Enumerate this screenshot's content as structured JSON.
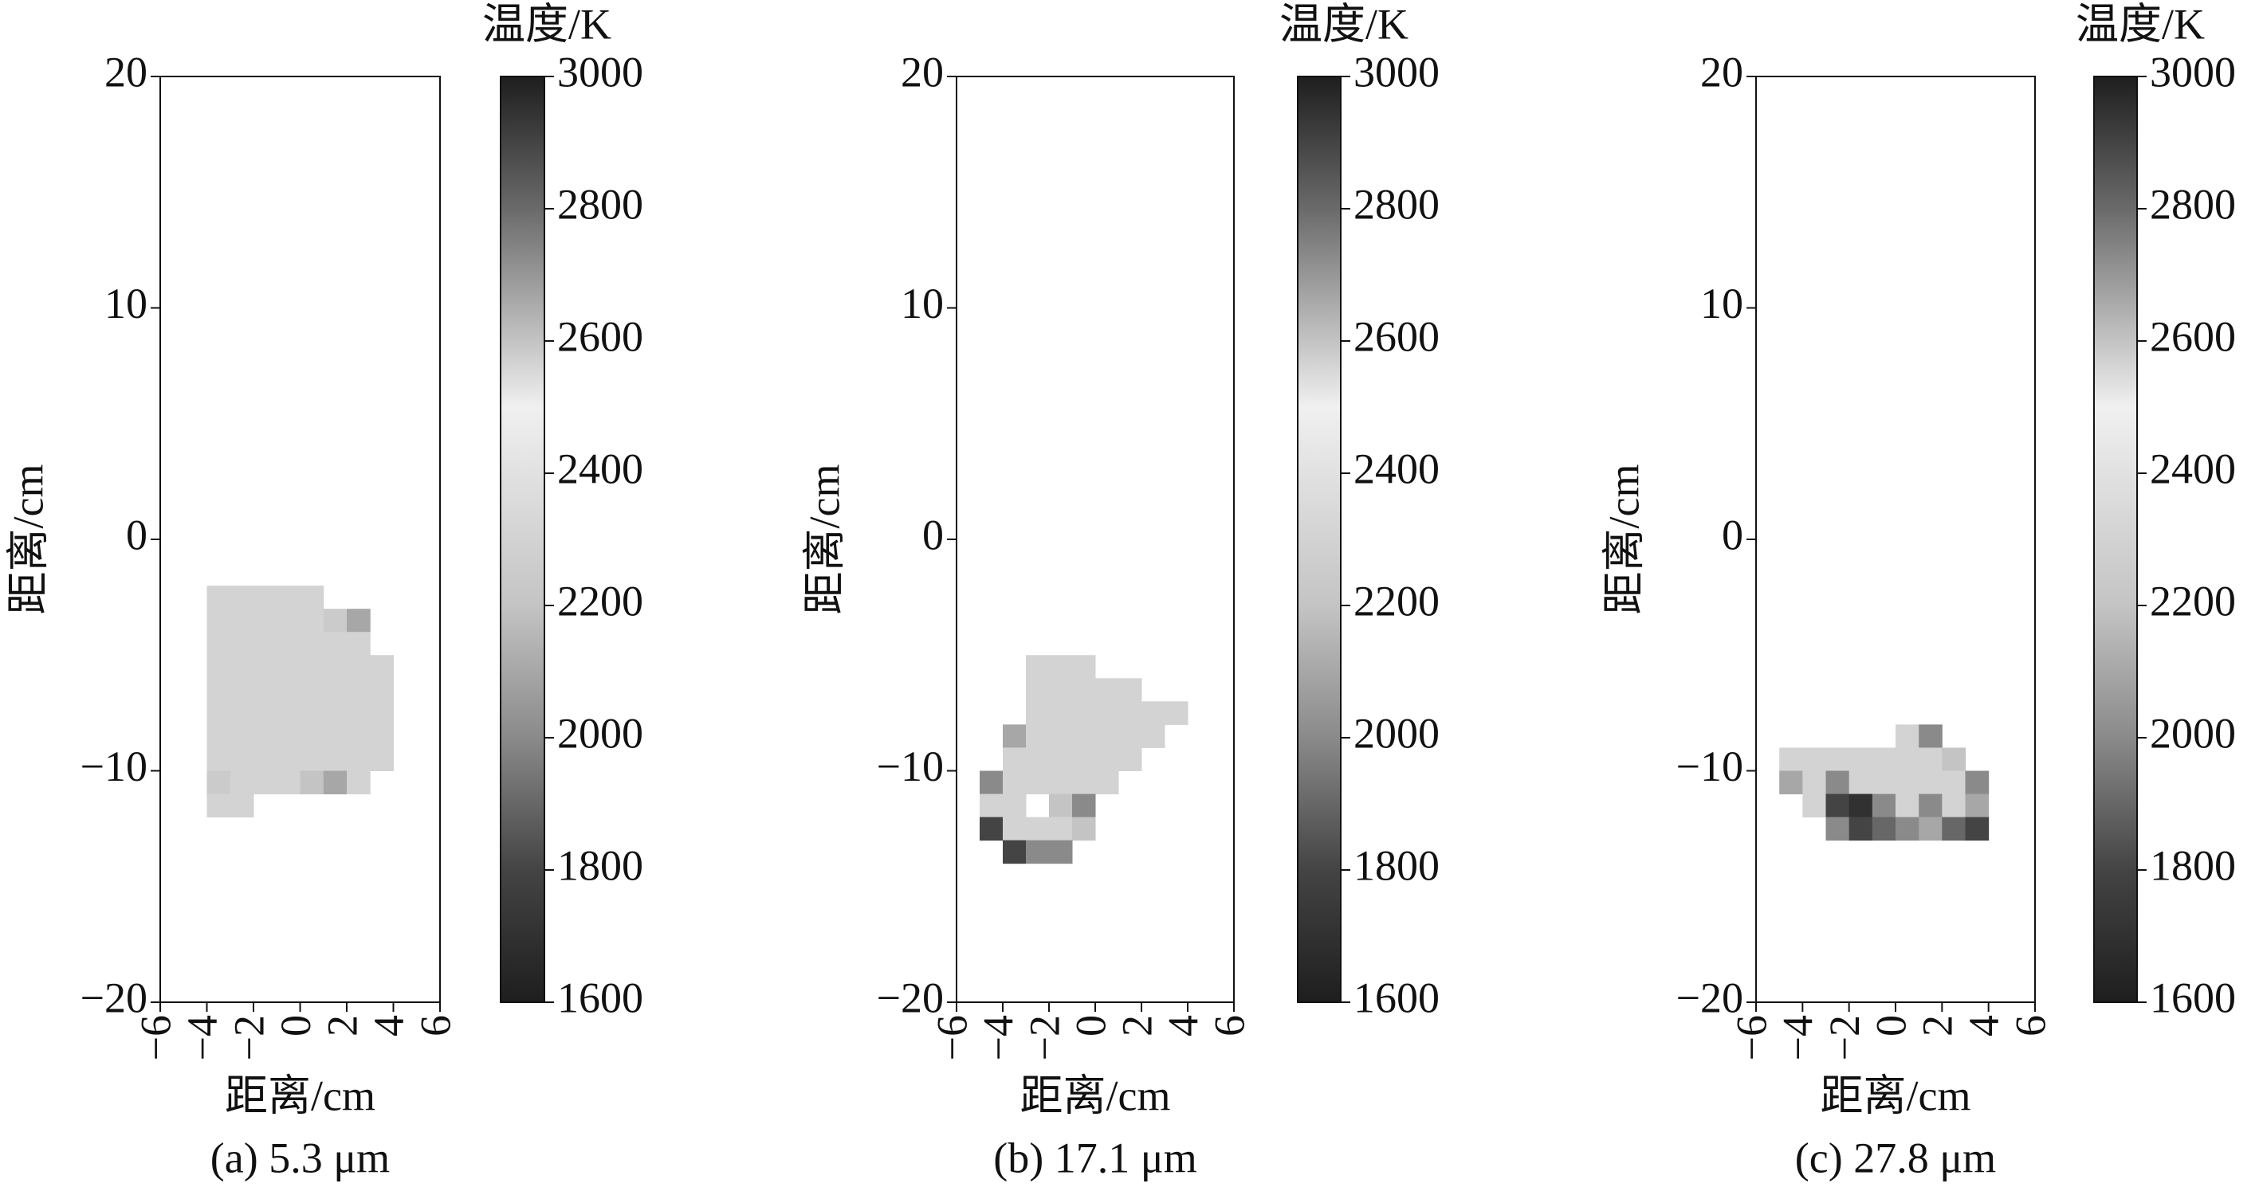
{
  "chart_data": [
    {
      "type": "heatmap",
      "caption": "(a) 5.3 μm",
      "xlabel": "距离/cm",
      "ylabel": "距离/cm",
      "colorbar_label": "温度/K",
      "xlim": [
        -6,
        6
      ],
      "ylim": [
        -20,
        20
      ],
      "xticks": [
        {
          "value": -6,
          "label": "−6"
        },
        {
          "value": -4,
          "label": "−4"
        },
        {
          "value": -2,
          "label": "−2"
        },
        0,
        2,
        4,
        6
      ],
      "yticks": [
        {
          "value": -20,
          "label": "−20"
        },
        {
          "value": -10,
          "label": "−10"
        },
        0,
        10,
        20
      ],
      "zlim": [
        1600,
        3000
      ],
      "zticks": [
        1600,
        1800,
        2000,
        2200,
        2400,
        2600,
        2800,
        3000
      ],
      "colormap": [
        {
          "value": 1600,
          "color": "#1e1e1e"
        },
        {
          "value": 1800,
          "color": "#444444"
        },
        {
          "value": 2000,
          "color": "#8a8a8a"
        },
        {
          "value": 2200,
          "color": "#c4c4c4"
        },
        {
          "value": 2500,
          "color": "#f0f0f0"
        },
        {
          "value": 2800,
          "color": "#6a6a6a"
        },
        {
          "value": 3000,
          "color": "#1e1e1e"
        }
      ],
      "x": [
        -4.5,
        -3.5,
        -2.5,
        -1.5,
        -0.5,
        0.5,
        1.5,
        2.5,
        3.5,
        4.5
      ],
      "y": [
        -2.5,
        -3.5,
        -4.5,
        -5.5,
        -6.5,
        -7.5,
        -8.5,
        -9.5,
        -10.5,
        -11.5
      ],
      "z": [
        [
          null,
          2300,
          2300,
          2300,
          2300,
          2300,
          null,
          null,
          null,
          null
        ],
        [
          null,
          2300,
          2300,
          2300,
          2300,
          2300,
          2250,
          2100,
          null,
          null
        ],
        [
          null,
          2300,
          2300,
          2300,
          2300,
          2300,
          2300,
          2300,
          null,
          null
        ],
        [
          null,
          2300,
          2300,
          2300,
          2300,
          2300,
          2300,
          2300,
          2300,
          null
        ],
        [
          null,
          2300,
          2300,
          2300,
          2300,
          2300,
          2300,
          2300,
          2300,
          null
        ],
        [
          null,
          2300,
          2300,
          2300,
          2300,
          2300,
          2300,
          2300,
          2300,
          null
        ],
        [
          null,
          2300,
          2300,
          2300,
          2300,
          2300,
          2300,
          2300,
          2300,
          null
        ],
        [
          null,
          2300,
          2300,
          2300,
          2300,
          2300,
          2300,
          2300,
          2300,
          null
        ],
        [
          null,
          2250,
          2300,
          2300,
          2300,
          2200,
          2100,
          2300,
          null,
          null
        ],
        [
          null,
          2300,
          2300,
          null,
          null,
          null,
          null,
          null,
          null,
          null
        ]
      ]
    },
    {
      "type": "heatmap",
      "caption": "(b) 17.1 μm",
      "xlabel": "距离/cm",
      "ylabel": "距离/cm",
      "colorbar_label": "温度/K",
      "xlim": [
        -6,
        6
      ],
      "ylim": [
        -20,
        20
      ],
      "xticks": [
        {
          "value": -6,
          "label": "−6"
        },
        {
          "value": -4,
          "label": "−4"
        },
        {
          "value": -2,
          "label": "−2"
        },
        0,
        2,
        4,
        6
      ],
      "yticks": [
        {
          "value": -20,
          "label": "−20"
        },
        {
          "value": -10,
          "label": "−10"
        },
        0,
        10,
        20
      ],
      "zlim": [
        1600,
        3000
      ],
      "zticks": [
        1600,
        1800,
        2000,
        2200,
        2400,
        2600,
        2800,
        3000
      ],
      "colormap": [
        {
          "value": 1600,
          "color": "#1e1e1e"
        },
        {
          "value": 1800,
          "color": "#444444"
        },
        {
          "value": 2000,
          "color": "#8a8a8a"
        },
        {
          "value": 2200,
          "color": "#c4c4c4"
        },
        {
          "value": 2500,
          "color": "#f0f0f0"
        },
        {
          "value": 2800,
          "color": "#6a6a6a"
        },
        {
          "value": 3000,
          "color": "#1e1e1e"
        }
      ],
      "x": [
        -4.5,
        -3.5,
        -2.5,
        -1.5,
        -0.5,
        0.5,
        1.5,
        2.5,
        3.5
      ],
      "y": [
        -5.5,
        -6.5,
        -7.5,
        -8.5,
        -9.5,
        -10.5,
        -11.5,
        -12.5,
        -13.5
      ],
      "z": [
        [
          null,
          null,
          2300,
          2300,
          2300,
          null,
          null,
          null,
          null
        ],
        [
          null,
          null,
          2300,
          2300,
          2300,
          2300,
          2300,
          null,
          null
        ],
        [
          null,
          null,
          2300,
          2300,
          2300,
          2300,
          2300,
          2300,
          2300
        ],
        [
          null,
          2100,
          2300,
          2300,
          2300,
          2300,
          2300,
          2300,
          null
        ],
        [
          null,
          2300,
          2300,
          2300,
          2300,
          2300,
          2300,
          null,
          null
        ],
        [
          2000,
          2300,
          2300,
          2300,
          2300,
          2300,
          null,
          null,
          null
        ],
        [
          2300,
          2300,
          null,
          2200,
          2000,
          null,
          null,
          null,
          null
        ],
        [
          1800,
          2300,
          2300,
          2300,
          2200,
          null,
          null,
          null,
          null
        ],
        [
          null,
          1800,
          2000,
          2000,
          null,
          null,
          null,
          null,
          null
        ]
      ]
    },
    {
      "type": "heatmap",
      "caption": "(c) 27.8 μm",
      "xlabel": "距离/cm",
      "ylabel": "距离/cm",
      "colorbar_label": "温度/K",
      "xlim": [
        -6,
        6
      ],
      "ylim": [
        -20,
        20
      ],
      "xticks": [
        {
          "value": -6,
          "label": "−6"
        },
        {
          "value": -4,
          "label": "−4"
        },
        {
          "value": -2,
          "label": "−2"
        },
        0,
        2,
        4,
        6
      ],
      "yticks": [
        {
          "value": -20,
          "label": "−20"
        },
        {
          "value": -10,
          "label": "−10"
        },
        0,
        10,
        20
      ],
      "zlim": [
        1600,
        3000
      ],
      "zticks": [
        1600,
        1800,
        2000,
        2200,
        2400,
        2600,
        2800,
        3000
      ],
      "colormap": [
        {
          "value": 1600,
          "color": "#1e1e1e"
        },
        {
          "value": 1800,
          "color": "#444444"
        },
        {
          "value": 2000,
          "color": "#8a8a8a"
        },
        {
          "value": 2200,
          "color": "#c4c4c4"
        },
        {
          "value": 2500,
          "color": "#f0f0f0"
        },
        {
          "value": 2800,
          "color": "#6a6a6a"
        },
        {
          "value": 3000,
          "color": "#1e1e1e"
        }
      ],
      "x": [
        -4.5,
        -3.5,
        -2.5,
        -1.5,
        -0.5,
        0.5,
        1.5,
        2.5,
        3.5
      ],
      "y": [
        -8.5,
        -9.5,
        -10.5,
        -11.5,
        -12.5
      ],
      "z": [
        [
          null,
          null,
          null,
          null,
          null,
          2300,
          2000,
          null,
          null
        ],
        [
          2300,
          2300,
          2300,
          2300,
          2300,
          2300,
          2300,
          2200,
          null
        ],
        [
          2100,
          2300,
          2000,
          2300,
          2300,
          2300,
          2300,
          2300,
          2000
        ],
        [
          null,
          2300,
          1800,
          1700,
          2000,
          2300,
          2000,
          2300,
          2100
        ],
        [
          null,
          null,
          2000,
          1800,
          1900,
          2000,
          2100,
          1900,
          1800
        ]
      ]
    }
  ]
}
